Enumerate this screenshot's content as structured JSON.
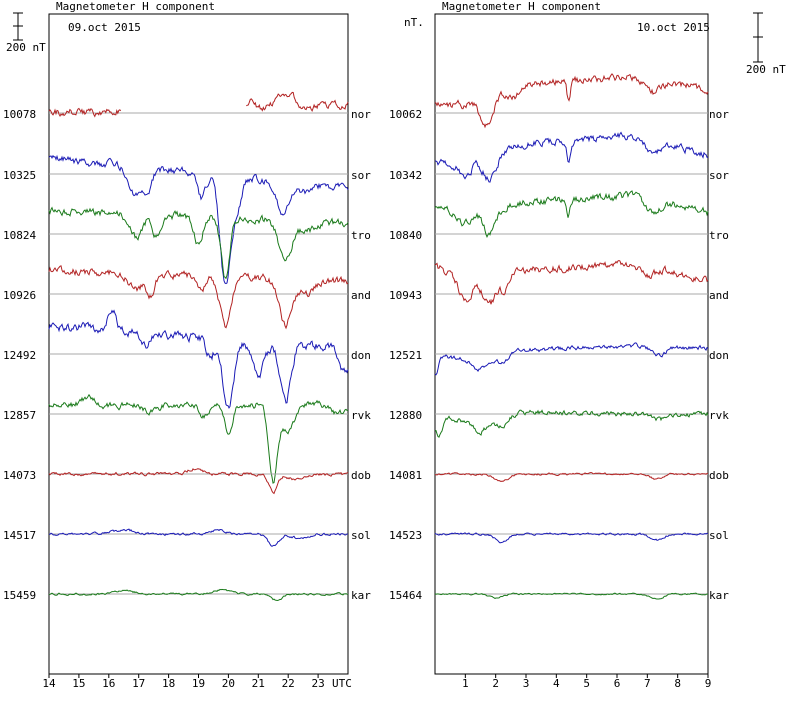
{
  "chart_data": [
    {
      "type": "line",
      "title": "Magnetometer H component",
      "date_label": "09.oct 2015",
      "scale_bar_label": "200 nT",
      "x_ticks": [
        "14",
        "15",
        "16",
        "17",
        "18",
        "19",
        "20",
        "21",
        "22",
        "23"
      ],
      "x_unit_label": "UTC",
      "xlim": [
        14,
        24
      ],
      "series": [
        {
          "name": "nor",
          "baseline": "10078",
          "color": "#b22222",
          "seed": 11,
          "amp": 6,
          "segments": [
            [
              14.0,
              16.4
            ],
            [
              20.6,
              24.0
            ]
          ],
          "events": [
            [
              20.8,
              -0.1,
              -8
            ],
            [
              21.8,
              -0.3,
              -14
            ],
            [
              22.2,
              -0.2,
              -6
            ]
          ],
          "drift": [
            [
              14.0,
              0
            ],
            [
              24.0,
              -8
            ]
          ]
        },
        {
          "name": "sor",
          "baseline": "10325",
          "color": "#1a1ab5",
          "seed": 12,
          "amp": 6,
          "segments": [
            [
              14.0,
              24.0
            ]
          ],
          "events": [
            [
              16.9,
              0.3,
              28
            ],
            [
              17.3,
              0.2,
              26
            ],
            [
              19.1,
              0.2,
              24
            ],
            [
              19.9,
              0.25,
              110
            ],
            [
              20.3,
              0.2,
              30
            ],
            [
              21.8,
              0.3,
              32
            ],
            [
              22.5,
              0.3,
              8
            ]
          ],
          "drift": [
            [
              14.0,
              -16
            ],
            [
              24.0,
              14
            ]
          ]
        },
        {
          "name": "tro",
          "baseline": "10824",
          "color": "#1a7a1a",
          "seed": 13,
          "amp": 6,
          "segments": [
            [
              14.0,
              24.0
            ]
          ],
          "events": [
            [
              16.9,
              0.3,
              24
            ],
            [
              17.6,
              0.2,
              22
            ],
            [
              19.0,
              0.2,
              26
            ],
            [
              19.9,
              0.2,
              60
            ],
            [
              21.9,
              0.3,
              40
            ],
            [
              22.6,
              0.4,
              10
            ]
          ],
          "drift": [
            [
              14.0,
              -24
            ],
            [
              24.0,
              -10
            ]
          ]
        },
        {
          "name": "and",
          "baseline": "10926",
          "color": "#b22222",
          "seed": 14,
          "amp": 6,
          "segments": [
            [
              14.0,
              24.0
            ]
          ],
          "events": [
            [
              16.9,
              0.3,
              16
            ],
            [
              17.4,
              0.2,
              20
            ],
            [
              19.1,
              0.2,
              14
            ],
            [
              19.9,
              0.25,
              50
            ],
            [
              21.9,
              0.3,
              44
            ],
            [
              22.6,
              0.4,
              14
            ]
          ],
          "drift": [
            [
              14.0,
              -24
            ],
            [
              24.0,
              -12
            ]
          ]
        },
        {
          "name": "don",
          "baseline": "12492",
          "color": "#1a1ab5",
          "seed": 15,
          "amp": 7,
          "segments": [
            [
              14.0,
              24.0
            ]
          ],
          "events": [
            [
              16.1,
              0.2,
              -20
            ],
            [
              17.2,
              0.2,
              14
            ],
            [
              19.4,
              0.2,
              18
            ],
            [
              20.0,
              0.25,
              70
            ],
            [
              21.0,
              0.3,
              32
            ],
            [
              21.9,
              0.25,
              60
            ],
            [
              23.9,
              0.25,
              24
            ]
          ],
          "drift": [
            [
              14.0,
              -28
            ],
            [
              24.0,
              -6
            ]
          ]
        },
        {
          "name": "rvk",
          "baseline": "12857",
          "color": "#1a7a1a",
          "seed": 16,
          "amp": 5,
          "segments": [
            [
              14.0,
              24.0
            ]
          ],
          "events": [
            [
              15.3,
              0.3,
              -8
            ],
            [
              17.4,
              0.3,
              6
            ],
            [
              19.2,
              0.2,
              12
            ],
            [
              20.0,
              0.2,
              26
            ],
            [
              21.5,
              0.2,
              76
            ],
            [
              22.0,
              0.3,
              28
            ],
            [
              23.7,
              0.3,
              10
            ]
          ],
          "drift": [
            [
              14.0,
              -8
            ],
            [
              24.0,
              -10
            ]
          ]
        },
        {
          "name": "dob",
          "baseline": "14073",
          "color": "#b22222",
          "seed": 17,
          "amp": 2.5,
          "segments": [
            [
              14.0,
              24.0
            ]
          ],
          "events": [
            [
              18.9,
              0.3,
              -6
            ],
            [
              21.5,
              0.2,
              18
            ],
            [
              22.3,
              0.5,
              5
            ]
          ],
          "drift": [
            [
              14.0,
              0
            ],
            [
              24.0,
              0
            ]
          ]
        },
        {
          "name": "sol",
          "baseline": "14517",
          "color": "#1a1ab5",
          "seed": 18,
          "amp": 2,
          "segments": [
            [
              14.0,
              24.0
            ]
          ],
          "events": [
            [
              16.5,
              0.5,
              -4
            ],
            [
              19.7,
              0.3,
              -4
            ],
            [
              21.5,
              0.25,
              12
            ],
            [
              22.4,
              0.4,
              4
            ]
          ],
          "drift": [
            [
              14.0,
              0
            ],
            [
              24.0,
              0
            ]
          ]
        },
        {
          "name": "kar",
          "baseline": "15459",
          "color": "#1a7a1a",
          "seed": 19,
          "amp": 1.6,
          "segments": [
            [
              14.0,
              24.0
            ]
          ],
          "events": [
            [
              16.5,
              0.4,
              -4
            ],
            [
              19.8,
              0.4,
              -4
            ],
            [
              21.6,
              0.3,
              6
            ]
          ],
          "drift": [
            [
              14.0,
              0
            ],
            [
              24.0,
              0
            ]
          ]
        }
      ]
    },
    {
      "type": "line",
      "title": "Magnetometer H component",
      "date_label": "10.oct 2015",
      "y_unit_label": "nT.",
      "scale_bar_label": "200 nT",
      "x_ticks": [
        "1",
        "2",
        "3",
        "4",
        "5",
        "6",
        "7",
        "8",
        "9"
      ],
      "xlim": [
        0,
        9
      ],
      "series": [
        {
          "name": "nor",
          "baseline": "10062",
          "color": "#b22222",
          "seed": 21,
          "amp": 6,
          "segments": [
            [
              0.0,
              9.0
            ]
          ],
          "events": [
            [
              1.7,
              0.3,
              26
            ],
            [
              2.6,
              0.3,
              10
            ],
            [
              4.4,
              0.08,
              18
            ],
            [
              7.2,
              0.3,
              12
            ]
          ],
          "drift": [
            [
              0.0,
              -8
            ],
            [
              1.0,
              -8
            ],
            [
              3.0,
              -30
            ],
            [
              6.5,
              -36
            ],
            [
              9.0,
              -24
            ]
          ]
        },
        {
          "name": "sor",
          "baseline": "10342",
          "color": "#1a1ab5",
          "seed": 22,
          "amp": 6,
          "segments": [
            [
              0.0,
              9.0
            ]
          ],
          "events": [
            [
              1.0,
              0.3,
              14
            ],
            [
              1.8,
              0.3,
              24
            ],
            [
              4.4,
              0.08,
              20
            ],
            [
              7.2,
              0.3,
              14
            ]
          ],
          "drift": [
            [
              0.0,
              -12
            ],
            [
              1.0,
              -12
            ],
            [
              3.0,
              -30
            ],
            [
              6.5,
              -38
            ],
            [
              9.0,
              -20
            ]
          ]
        },
        {
          "name": "tro",
          "baseline": "10840",
          "color": "#1a7a1a",
          "seed": 23,
          "amp": 6,
          "segments": [
            [
              0.0,
              9.0
            ]
          ],
          "events": [
            [
              1.0,
              0.3,
              12
            ],
            [
              1.8,
              0.3,
              26
            ],
            [
              4.4,
              0.08,
              14
            ],
            [
              7.2,
              0.3,
              14
            ]
          ],
          "drift": [
            [
              0.0,
              -24
            ],
            [
              1.0,
              -22
            ],
            [
              3.0,
              -32
            ],
            [
              6.5,
              -38
            ],
            [
              9.0,
              -22
            ]
          ]
        },
        {
          "name": "and",
          "baseline": "10943",
          "color": "#b22222",
          "seed": 24,
          "amp": 6,
          "segments": [
            [
              0.0,
              9.0
            ]
          ],
          "events": [
            [
              1.0,
              0.3,
              18
            ],
            [
              1.8,
              0.3,
              28
            ],
            [
              2.3,
              0.2,
              14
            ],
            [
              7.0,
              0.3,
              10
            ]
          ],
          "drift": [
            [
              0.0,
              -28
            ],
            [
              1.0,
              -12
            ],
            [
              3.0,
              -24
            ],
            [
              6.5,
              -30
            ],
            [
              9.0,
              -14
            ]
          ]
        },
        {
          "name": "don",
          "baseline": "12521",
          "color": "#1a1ab5",
          "seed": 25,
          "amp": 3.5,
          "segments": [
            [
              0.0,
              9.0
            ]
          ],
          "events": [
            [
              0.0,
              0.15,
              20
            ],
            [
              1.5,
              0.3,
              12
            ],
            [
              2.2,
              0.3,
              8
            ],
            [
              7.4,
              0.3,
              8
            ]
          ],
          "drift": [
            [
              0.0,
              0
            ],
            [
              1.0,
              6
            ],
            [
              3.0,
              -4
            ],
            [
              6.5,
              -8
            ],
            [
              9.0,
              -6
            ]
          ]
        },
        {
          "name": "rvk",
          "baseline": "12880",
          "color": "#1a7a1a",
          "seed": 26,
          "amp": 4,
          "segments": [
            [
              0.0,
              9.0
            ]
          ],
          "events": [
            [
              0.1,
              0.2,
              20
            ],
            [
              1.5,
              0.3,
              12
            ],
            [
              2.2,
              0.3,
              10
            ],
            [
              7.4,
              0.3,
              6
            ]
          ],
          "drift": [
            [
              0.0,
              0
            ],
            [
              1.0,
              8
            ],
            [
              3.0,
              -2
            ],
            [
              6.5,
              0
            ],
            [
              9.0,
              0
            ]
          ]
        },
        {
          "name": "dob",
          "baseline": "14081",
          "color": "#b22222",
          "seed": 27,
          "amp": 1.6,
          "segments": [
            [
              0.0,
              9.0
            ]
          ],
          "events": [
            [
              2.2,
              0.3,
              8
            ],
            [
              7.3,
              0.3,
              5
            ]
          ],
          "drift": [
            [
              0.0,
              0
            ],
            [
              9.0,
              0
            ]
          ]
        },
        {
          "name": "sol",
          "baseline": "14523",
          "color": "#1a1ab5",
          "seed": 28,
          "amp": 1.6,
          "segments": [
            [
              0.0,
              9.0
            ]
          ],
          "events": [
            [
              2.2,
              0.3,
              8
            ],
            [
              7.3,
              0.3,
              6
            ]
          ],
          "drift": [
            [
              0.0,
              0
            ],
            [
              9.0,
              0
            ]
          ]
        },
        {
          "name": "kar",
          "baseline": "15464",
          "color": "#1a7a1a",
          "seed": 29,
          "amp": 1.2,
          "segments": [
            [
              0.0,
              9.0
            ]
          ],
          "events": [
            [
              2.0,
              0.3,
              4
            ],
            [
              7.3,
              0.3,
              5
            ]
          ],
          "drift": [
            [
              0.0,
              0
            ],
            [
              9.0,
              0
            ]
          ]
        }
      ]
    }
  ]
}
